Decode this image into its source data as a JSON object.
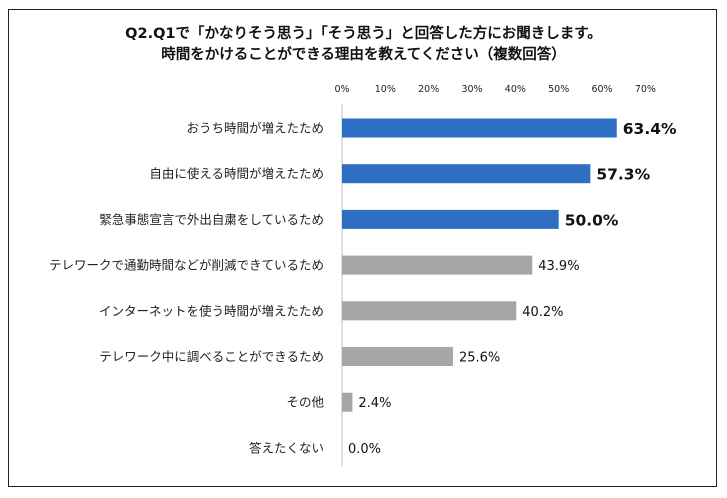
{
  "title_lines": [
    "Q2.Q1で「かなりそう思う」「そう思う」と回答した方にお聞きします。",
    "時間をかけることができる理由を教えてください（複数回答）"
  ],
  "chart_data": {
    "type": "bar",
    "orientation": "horizontal",
    "title": "Q2.Q1で「かなりそう思う」「そう思う」と回答した方にお聞きします。 時間をかけることができる理由を教えてください（複数回答）",
    "xlim": [
      0,
      70
    ],
    "ticks": [
      0,
      10,
      20,
      30,
      40,
      50,
      60,
      70
    ],
    "tick_labels": [
      "0%",
      "10%",
      "20%",
      "30%",
      "40%",
      "50%",
      "60%",
      "70%"
    ],
    "tick_position": "top",
    "grid": false,
    "categories": [
      "おうち時間が増えたため",
      "自由に使える時間が増えたため",
      "緊急事態宣言で外出自粛をしているため",
      "テレワークで通勤時間などが削減できているため",
      "インターネットを使う時間が増えたため",
      "テレワーク中に調べることができるため",
      "その他",
      "答えたくない"
    ],
    "values": [
      63.4,
      57.3,
      50.0,
      43.9,
      40.2,
      25.6,
      2.4,
      0.0
    ],
    "value_labels": [
      "63.4%",
      "57.3%",
      "50.0%",
      "43.9%",
      "40.2%",
      "25.6%",
      "2.4%",
      "0.0%"
    ],
    "highlight_count": 3,
    "colors": {
      "highlight": "#2e6fc3",
      "normal": "#a6a6a6",
      "axis": "#bfbfbf",
      "text": "#222222"
    }
  }
}
